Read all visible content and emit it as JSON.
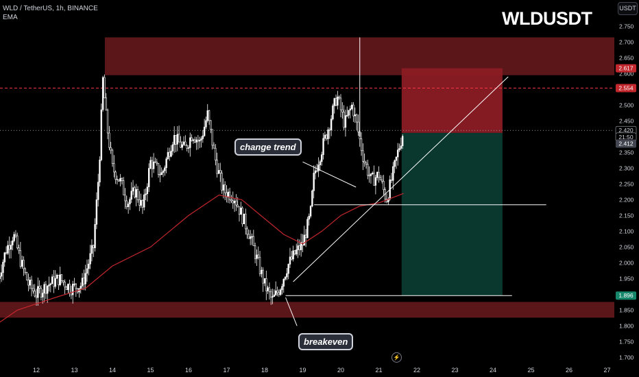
{
  "header": {
    "symbol_line": "WLD / TetherUS, 1h, BINANCE",
    "indicator": "EMA",
    "big_title": "WLDUSDT",
    "currency_button": "USDT"
  },
  "annotations": {
    "change_trend": "change trend",
    "breakeven": "breakeven"
  },
  "price_tags": {
    "resistance_top": "2.617",
    "dashed_line": "2.554",
    "current_price": "2.420",
    "countdown": "21:50",
    "entry": "2.412",
    "target": "1.896"
  },
  "icons": {
    "flash": "lightning-icon"
  },
  "colors": {
    "background": "#000000",
    "zone_red": "#6b1a1f",
    "stop_zone": "#8c1c24",
    "target_zone": "#0b3b30",
    "ema": "#c2272d",
    "candle": "#ffffff",
    "dashed_line": "#f23645",
    "target_tag": "#17876b"
  },
  "chart_data": {
    "type": "candlestick",
    "symbol": "WLD / TetherUS",
    "timeframe": "1h",
    "exchange": "BINANCE",
    "x_ticks": [
      "12",
      "13",
      "14",
      "15",
      "16",
      "17",
      "18",
      "19",
      "20",
      "21",
      "22",
      "23",
      "24",
      "25",
      "26",
      "27"
    ],
    "y_ticks": [
      1.7,
      1.75,
      1.8,
      1.85,
      1.9,
      1.95,
      2.0,
      2.05,
      2.1,
      2.15,
      2.2,
      2.25,
      2.3,
      2.35,
      2.4,
      2.45,
      2.5,
      2.55,
      2.6,
      2.65,
      2.7,
      2.75
    ],
    "ylim": [
      1.69,
      2.77
    ],
    "price_path": [
      {
        "day": 11.0,
        "price": 1.95
      },
      {
        "day": 11.2,
        "price": 2.04
      },
      {
        "day": 11.4,
        "price": 2.09
      },
      {
        "day": 11.6,
        "price": 2.0
      },
      {
        "day": 11.8,
        "price": 1.93
      },
      {
        "day": 12.0,
        "price": 1.9
      },
      {
        "day": 12.3,
        "price": 1.93
      },
      {
        "day": 12.6,
        "price": 1.95
      },
      {
        "day": 12.9,
        "price": 1.92
      },
      {
        "day": 13.2,
        "price": 1.93
      },
      {
        "day": 13.5,
        "price": 2.05
      },
      {
        "day": 13.65,
        "price": 2.3
      },
      {
        "day": 13.75,
        "price": 2.58
      },
      {
        "day": 13.85,
        "price": 2.44
      },
      {
        "day": 14.0,
        "price": 2.3
      },
      {
        "day": 14.2,
        "price": 2.26
      },
      {
        "day": 14.4,
        "price": 2.19
      },
      {
        "day": 14.6,
        "price": 2.23
      },
      {
        "day": 14.8,
        "price": 2.17
      },
      {
        "day": 15.0,
        "price": 2.32
      },
      {
        "day": 15.3,
        "price": 2.28
      },
      {
        "day": 15.6,
        "price": 2.4
      },
      {
        "day": 15.9,
        "price": 2.36
      },
      {
        "day": 16.1,
        "price": 2.41
      },
      {
        "day": 16.3,
        "price": 2.38
      },
      {
        "day": 16.5,
        "price": 2.47
      },
      {
        "day": 16.7,
        "price": 2.33
      },
      {
        "day": 16.9,
        "price": 2.23
      },
      {
        "day": 17.2,
        "price": 2.21
      },
      {
        "day": 17.4,
        "price": 2.15
      },
      {
        "day": 17.6,
        "price": 2.09
      },
      {
        "day": 17.8,
        "price": 2.01
      },
      {
        "day": 18.0,
        "price": 1.93
      },
      {
        "day": 18.2,
        "price": 1.88
      },
      {
        "day": 18.4,
        "price": 1.92
      },
      {
        "day": 18.6,
        "price": 1.99
      },
      {
        "day": 18.8,
        "price": 2.03
      },
      {
        "day": 19.0,
        "price": 2.06
      },
      {
        "day": 19.2,
        "price": 2.15
      },
      {
        "day": 19.3,
        "price": 2.28
      },
      {
        "day": 19.5,
        "price": 2.36
      },
      {
        "day": 19.7,
        "price": 2.44
      },
      {
        "day": 19.9,
        "price": 2.53
      },
      {
        "day": 20.1,
        "price": 2.44
      },
      {
        "day": 20.3,
        "price": 2.5
      },
      {
        "day": 20.45,
        "price": 2.42
      },
      {
        "day": 20.6,
        "price": 2.33
      },
      {
        "day": 20.8,
        "price": 2.26
      },
      {
        "day": 21.0,
        "price": 2.28
      },
      {
        "day": 21.2,
        "price": 2.2
      },
      {
        "day": 21.35,
        "price": 2.27
      },
      {
        "day": 21.5,
        "price": 2.35
      },
      {
        "day": 21.65,
        "price": 2.42
      }
    ],
    "ema": [
      {
        "day": 10.9,
        "price": 1.8
      },
      {
        "day": 11.5,
        "price": 1.85
      },
      {
        "day": 12.5,
        "price": 1.89
      },
      {
        "day": 13.3,
        "price": 1.92
      },
      {
        "day": 14.0,
        "price": 1.99
      },
      {
        "day": 15.0,
        "price": 2.05
      },
      {
        "day": 16.0,
        "price": 2.15
      },
      {
        "day": 16.8,
        "price": 2.215
      },
      {
        "day": 17.4,
        "price": 2.2
      },
      {
        "day": 18.0,
        "price": 2.14
      },
      {
        "day": 18.5,
        "price": 2.09
      },
      {
        "day": 19.0,
        "price": 2.06
      },
      {
        "day": 19.5,
        "price": 2.1
      },
      {
        "day": 20.0,
        "price": 2.15
      },
      {
        "day": 20.5,
        "price": 2.18
      },
      {
        "day": 21.0,
        "price": 2.19
      },
      {
        "day": 21.65,
        "price": 2.22
      }
    ],
    "zones": [
      {
        "name": "resistance",
        "x_from": 13.8,
        "x_to": 27.2,
        "y_from": 2.595,
        "y_to": 2.715
      },
      {
        "name": "support",
        "x_from": 10.6,
        "x_to": 27.2,
        "y_from": 1.826,
        "y_to": 1.876
      }
    ],
    "short_position": {
      "x_from": 21.6,
      "x_to": 24.25,
      "entry": 2.412,
      "stop": 2.617,
      "target": 1.896
    },
    "levels": [
      {
        "name": "dashed",
        "price": 2.554
      },
      {
        "name": "current",
        "price": 2.42
      }
    ],
    "lines": [
      {
        "name": "trendline",
        "from": {
          "day": 18.75,
          "price": 1.94
        },
        "to": {
          "day": 24.4,
          "price": 2.59
        }
      },
      {
        "name": "hline_breakout",
        "from": {
          "day": 19.3,
          "price": 2.184
        },
        "to": {
          "day": 25.4,
          "price": 2.184
        }
      },
      {
        "name": "hline_breakeven",
        "from": {
          "day": 18.55,
          "price": 1.896
        },
        "to": {
          "day": 24.5,
          "price": 1.896
        }
      },
      {
        "name": "arrow_change_trend",
        "from": {
          "day": 19.0,
          "price": 2.32
        },
        "to": {
          "day": 20.4,
          "price": 2.24
        }
      },
      {
        "name": "arrow_breakeven",
        "from": {
          "day": 18.85,
          "price": 1.8
        },
        "to": {
          "day": 18.55,
          "price": 1.89
        }
      }
    ],
    "wick_spike": {
      "day": 20.5,
      "high": 2.715,
      "low": 2.4
    }
  }
}
